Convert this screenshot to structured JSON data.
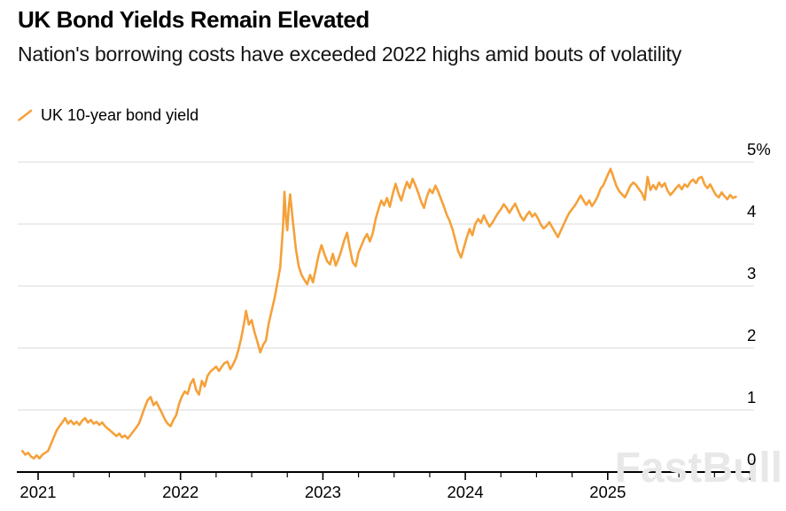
{
  "header": {
    "title": "UK Bond Yields Remain Elevated",
    "subtitle": "Nation's borrowing costs have exceeded 2022 highs amid bouts of volatility"
  },
  "legend": {
    "label": "UK 10-year bond yield"
  },
  "watermark": "FastBull",
  "colors": {
    "line": "#F5A13A",
    "grid": "#D9D9D9",
    "axis": "#000000",
    "tick_label": "#000000",
    "watermark": "#E8E8E8",
    "background": "#FFFFFF"
  },
  "chart_data": {
    "type": "line",
    "title": "UK Bond Yields Remain Elevated",
    "subtitle": "Nation's borrowing costs have exceeded 2022 highs amid bouts of volatility",
    "unit": "%",
    "grid": "horizontal",
    "legend_position": "top-left",
    "x_domain": [
      2020.89,
      2025.92
    ],
    "y_domain": [
      0,
      5
    ],
    "y_ticks": [
      {
        "value": 5,
        "label": "5%"
      },
      {
        "value": 4,
        "label": "4"
      },
      {
        "value": 3,
        "label": "3"
      },
      {
        "value": 2,
        "label": "2"
      },
      {
        "value": 1,
        "label": "1"
      },
      {
        "value": 0,
        "label": "0"
      }
    ],
    "x_ticks_major": [
      {
        "value": 2021,
        "label": "2021"
      },
      {
        "value": 2022,
        "label": "2022"
      },
      {
        "value": 2023,
        "label": "2023"
      },
      {
        "value": 2024,
        "label": "2024"
      },
      {
        "value": 2025,
        "label": "2025"
      }
    ],
    "x_minor_step": 0.25,
    "series": [
      {
        "name": "UK 10-year bond yield",
        "points": [
          [
            2020.89,
            0.34
          ],
          [
            2020.91,
            0.28
          ],
          [
            2020.93,
            0.31
          ],
          [
            2020.95,
            0.25
          ],
          [
            2020.97,
            0.22
          ],
          [
            2020.99,
            0.27
          ],
          [
            2021.01,
            0.22
          ],
          [
            2021.03,
            0.28
          ],
          [
            2021.05,
            0.31
          ],
          [
            2021.07,
            0.34
          ],
          [
            2021.09,
            0.45
          ],
          [
            2021.11,
            0.56
          ],
          [
            2021.13,
            0.67
          ],
          [
            2021.15,
            0.74
          ],
          [
            2021.17,
            0.8
          ],
          [
            2021.19,
            0.87
          ],
          [
            2021.21,
            0.78
          ],
          [
            2021.23,
            0.83
          ],
          [
            2021.25,
            0.77
          ],
          [
            2021.27,
            0.81
          ],
          [
            2021.29,
            0.76
          ],
          [
            2021.31,
            0.83
          ],
          [
            2021.33,
            0.87
          ],
          [
            2021.35,
            0.8
          ],
          [
            2021.37,
            0.84
          ],
          [
            2021.39,
            0.78
          ],
          [
            2021.41,
            0.81
          ],
          [
            2021.43,
            0.76
          ],
          [
            2021.45,
            0.8
          ],
          [
            2021.47,
            0.74
          ],
          [
            2021.49,
            0.7
          ],
          [
            2021.51,
            0.66
          ],
          [
            2021.53,
            0.62
          ],
          [
            2021.55,
            0.58
          ],
          [
            2021.57,
            0.62
          ],
          [
            2021.59,
            0.56
          ],
          [
            2021.61,
            0.59
          ],
          [
            2021.63,
            0.54
          ],
          [
            2021.65,
            0.6
          ],
          [
            2021.67,
            0.66
          ],
          [
            2021.69,
            0.72
          ],
          [
            2021.71,
            0.79
          ],
          [
            2021.73,
            0.92
          ],
          [
            2021.75,
            1.05
          ],
          [
            2021.77,
            1.16
          ],
          [
            2021.79,
            1.21
          ],
          [
            2021.81,
            1.08
          ],
          [
            2021.83,
            1.13
          ],
          [
            2021.85,
            1.04
          ],
          [
            2021.87,
            0.95
          ],
          [
            2021.89,
            0.85
          ],
          [
            2021.91,
            0.78
          ],
          [
            2021.93,
            0.74
          ],
          [
            2021.95,
            0.84
          ],
          [
            2021.97,
            0.92
          ],
          [
            2021.99,
            1.1
          ],
          [
            2022.01,
            1.22
          ],
          [
            2022.03,
            1.3
          ],
          [
            2022.05,
            1.26
          ],
          [
            2022.07,
            1.42
          ],
          [
            2022.09,
            1.5
          ],
          [
            2022.11,
            1.32
          ],
          [
            2022.13,
            1.25
          ],
          [
            2022.15,
            1.47
          ],
          [
            2022.17,
            1.38
          ],
          [
            2022.19,
            1.55
          ],
          [
            2022.21,
            1.62
          ],
          [
            2022.23,
            1.66
          ],
          [
            2022.25,
            1.7
          ],
          [
            2022.27,
            1.63
          ],
          [
            2022.29,
            1.7
          ],
          [
            2022.31,
            1.76
          ],
          [
            2022.33,
            1.78
          ],
          [
            2022.35,
            1.66
          ],
          [
            2022.37,
            1.74
          ],
          [
            2022.39,
            1.84
          ],
          [
            2022.41,
            2.0
          ],
          [
            2022.43,
            2.2
          ],
          [
            2022.45,
            2.45
          ],
          [
            2022.46,
            2.6
          ],
          [
            2022.48,
            2.38
          ],
          [
            2022.5,
            2.45
          ],
          [
            2022.52,
            2.25
          ],
          [
            2022.54,
            2.1
          ],
          [
            2022.56,
            1.93
          ],
          [
            2022.58,
            2.05
          ],
          [
            2022.6,
            2.12
          ],
          [
            2022.62,
            2.4
          ],
          [
            2022.64,
            2.6
          ],
          [
            2022.66,
            2.8
          ],
          [
            2022.68,
            3.05
          ],
          [
            2022.7,
            3.3
          ],
          [
            2022.72,
            3.95
          ],
          [
            2022.73,
            4.52
          ],
          [
            2022.74,
            4.12
          ],
          [
            2022.75,
            3.9
          ],
          [
            2022.76,
            4.25
          ],
          [
            2022.77,
            4.48
          ],
          [
            2022.79,
            4.02
          ],
          [
            2022.81,
            3.6
          ],
          [
            2022.83,
            3.32
          ],
          [
            2022.85,
            3.18
          ],
          [
            2022.87,
            3.1
          ],
          [
            2022.89,
            3.03
          ],
          [
            2022.91,
            3.18
          ],
          [
            2022.93,
            3.06
          ],
          [
            2022.95,
            3.28
          ],
          [
            2022.97,
            3.5
          ],
          [
            2022.99,
            3.66
          ],
          [
            2023.01,
            3.52
          ],
          [
            2023.03,
            3.4
          ],
          [
            2023.05,
            3.35
          ],
          [
            2023.07,
            3.52
          ],
          [
            2023.09,
            3.33
          ],
          [
            2023.11,
            3.44
          ],
          [
            2023.13,
            3.58
          ],
          [
            2023.15,
            3.74
          ],
          [
            2023.17,
            3.86
          ],
          [
            2023.19,
            3.6
          ],
          [
            2023.21,
            3.38
          ],
          [
            2023.23,
            3.32
          ],
          [
            2023.25,
            3.54
          ],
          [
            2023.27,
            3.65
          ],
          [
            2023.29,
            3.76
          ],
          [
            2023.31,
            3.84
          ],
          [
            2023.33,
            3.72
          ],
          [
            2023.35,
            3.85
          ],
          [
            2023.37,
            4.08
          ],
          [
            2023.39,
            4.24
          ],
          [
            2023.41,
            4.38
          ],
          [
            2023.43,
            4.3
          ],
          [
            2023.45,
            4.42
          ],
          [
            2023.47,
            4.28
          ],
          [
            2023.49,
            4.48
          ],
          [
            2023.51,
            4.65
          ],
          [
            2023.53,
            4.5
          ],
          [
            2023.55,
            4.38
          ],
          [
            2023.57,
            4.54
          ],
          [
            2023.59,
            4.68
          ],
          [
            2023.61,
            4.58
          ],
          [
            2023.63,
            4.73
          ],
          [
            2023.65,
            4.62
          ],
          [
            2023.67,
            4.5
          ],
          [
            2023.69,
            4.36
          ],
          [
            2023.71,
            4.26
          ],
          [
            2023.73,
            4.44
          ],
          [
            2023.75,
            4.56
          ],
          [
            2023.77,
            4.5
          ],
          [
            2023.79,
            4.62
          ],
          [
            2023.81,
            4.52
          ],
          [
            2023.83,
            4.4
          ],
          [
            2023.85,
            4.28
          ],
          [
            2023.87,
            4.15
          ],
          [
            2023.89,
            4.05
          ],
          [
            2023.91,
            3.92
          ],
          [
            2023.93,
            3.74
          ],
          [
            2023.95,
            3.56
          ],
          [
            2023.97,
            3.46
          ],
          [
            2023.99,
            3.62
          ],
          [
            2024.01,
            3.78
          ],
          [
            2024.03,
            3.92
          ],
          [
            2024.05,
            3.82
          ],
          [
            2024.07,
            4.0
          ],
          [
            2024.09,
            4.08
          ],
          [
            2024.11,
            4.02
          ],
          [
            2024.13,
            4.14
          ],
          [
            2024.15,
            4.04
          ],
          [
            2024.17,
            3.96
          ],
          [
            2024.19,
            4.02
          ],
          [
            2024.21,
            4.1
          ],
          [
            2024.23,
            4.18
          ],
          [
            2024.25,
            4.24
          ],
          [
            2024.27,
            4.32
          ],
          [
            2024.29,
            4.26
          ],
          [
            2024.31,
            4.18
          ],
          [
            2024.33,
            4.26
          ],
          [
            2024.35,
            4.33
          ],
          [
            2024.37,
            4.22
          ],
          [
            2024.39,
            4.12
          ],
          [
            2024.41,
            4.06
          ],
          [
            2024.43,
            4.14
          ],
          [
            2024.45,
            4.2
          ],
          [
            2024.47,
            4.12
          ],
          [
            2024.49,
            4.17
          ],
          [
            2024.51,
            4.09
          ],
          [
            2024.53,
            3.99
          ],
          [
            2024.55,
            3.93
          ],
          [
            2024.57,
            3.97
          ],
          [
            2024.59,
            4.03
          ],
          [
            2024.61,
            3.95
          ],
          [
            2024.63,
            3.87
          ],
          [
            2024.65,
            3.79
          ],
          [
            2024.67,
            3.89
          ],
          [
            2024.69,
            3.99
          ],
          [
            2024.71,
            4.09
          ],
          [
            2024.73,
            4.18
          ],
          [
            2024.75,
            4.24
          ],
          [
            2024.77,
            4.3
          ],
          [
            2024.79,
            4.38
          ],
          [
            2024.81,
            4.46
          ],
          [
            2024.83,
            4.38
          ],
          [
            2024.85,
            4.31
          ],
          [
            2024.87,
            4.38
          ],
          [
            2024.89,
            4.29
          ],
          [
            2024.91,
            4.36
          ],
          [
            2024.93,
            4.45
          ],
          [
            2024.95,
            4.57
          ],
          [
            2024.97,
            4.63
          ],
          [
            2024.99,
            4.74
          ],
          [
            2025.01,
            4.84
          ],
          [
            2025.02,
            4.89
          ],
          [
            2025.04,
            4.76
          ],
          [
            2025.06,
            4.62
          ],
          [
            2025.08,
            4.53
          ],
          [
            2025.1,
            4.48
          ],
          [
            2025.12,
            4.43
          ],
          [
            2025.14,
            4.52
          ],
          [
            2025.16,
            4.62
          ],
          [
            2025.18,
            4.67
          ],
          [
            2025.2,
            4.63
          ],
          [
            2025.22,
            4.56
          ],
          [
            2025.24,
            4.5
          ],
          [
            2025.26,
            4.39
          ],
          [
            2025.28,
            4.76
          ],
          [
            2025.3,
            4.55
          ],
          [
            2025.32,
            4.63
          ],
          [
            2025.34,
            4.56
          ],
          [
            2025.36,
            4.67
          ],
          [
            2025.38,
            4.6
          ],
          [
            2025.4,
            4.66
          ],
          [
            2025.42,
            4.54
          ],
          [
            2025.44,
            4.47
          ],
          [
            2025.46,
            4.52
          ],
          [
            2025.48,
            4.58
          ],
          [
            2025.5,
            4.63
          ],
          [
            2025.52,
            4.56
          ],
          [
            2025.54,
            4.64
          ],
          [
            2025.56,
            4.6
          ],
          [
            2025.58,
            4.68
          ],
          [
            2025.6,
            4.72
          ],
          [
            2025.62,
            4.66
          ],
          [
            2025.64,
            4.74
          ],
          [
            2025.66,
            4.76
          ],
          [
            2025.68,
            4.64
          ],
          [
            2025.7,
            4.58
          ],
          [
            2025.72,
            4.64
          ],
          [
            2025.74,
            4.55
          ],
          [
            2025.76,
            4.47
          ],
          [
            2025.78,
            4.43
          ],
          [
            2025.8,
            4.51
          ],
          [
            2025.82,
            4.45
          ],
          [
            2025.84,
            4.4
          ],
          [
            2025.86,
            4.47
          ],
          [
            2025.88,
            4.42
          ],
          [
            2025.9,
            4.44
          ]
        ]
      }
    ]
  }
}
